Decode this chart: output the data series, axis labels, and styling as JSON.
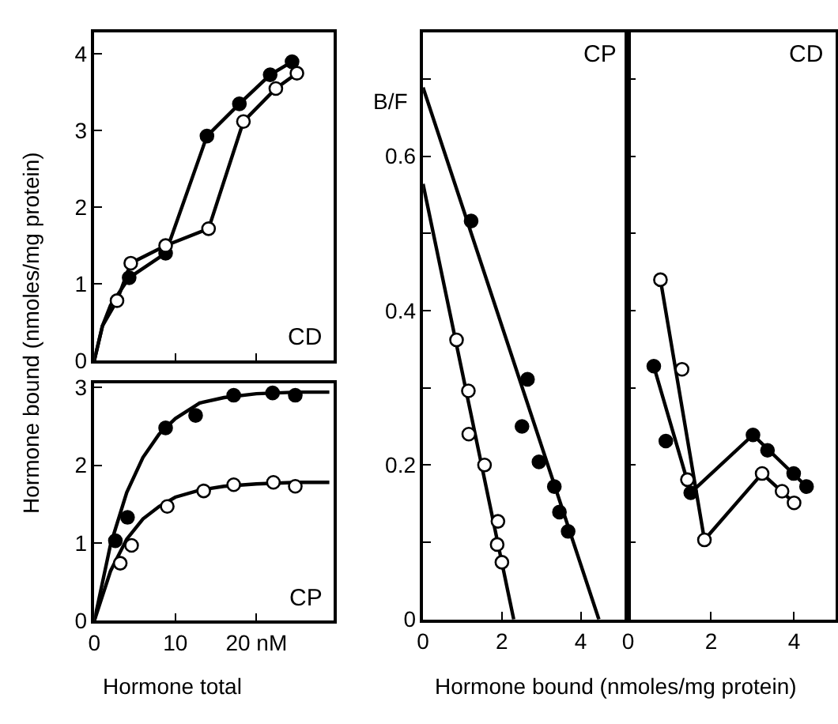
{
  "chart_data": [
    {
      "type": "scatter",
      "title": "CD",
      "ylabel": "Hormone bound (nmoles/mg protein)",
      "xlim": [
        0,
        29.5
      ],
      "ylim": [
        0,
        4.28
      ],
      "xticks": [
        0,
        10,
        20
      ],
      "yticks": [
        0,
        1,
        2,
        3,
        4
      ],
      "tick_labels": "y",
      "marker": "circle",
      "series": [
        {
          "type": "line",
          "marker": "none",
          "color": "#000000",
          "x": [
            0,
            1,
            2,
            4.3,
            8.8,
            13.9,
            17.9,
            21.7,
            24.4
          ],
          "values": [
            0,
            0.45,
            0.72,
            1.08,
            1.4,
            2.93,
            3.35,
            3.73,
            3.9
          ]
        },
        {
          "type": "line",
          "marker": "none",
          "color": "#000000",
          "x": [
            0,
            1,
            2.8,
            4.5,
            8.8,
            14.1,
            18.4,
            22.4,
            25
          ],
          "values": [
            0,
            0.45,
            0.78,
            1.27,
            1.5,
            1.72,
            3.12,
            3.55,
            3.75
          ]
        },
        {
          "color": "#000000",
          "x": [
            4.3,
            8.8,
            13.9,
            17.9,
            21.7,
            24.4
          ],
          "values": [
            1.08,
            1.4,
            2.93,
            3.35,
            3.73,
            3.9
          ]
        },
        {
          "color": "#ffffff",
          "x": [
            2.8,
            4.5,
            8.8,
            14.1,
            18.4,
            22.4,
            25
          ],
          "values": [
            0.78,
            1.27,
            1.5,
            1.72,
            3.12,
            3.55,
            3.75
          ]
        }
      ]
    },
    {
      "type": "scatter",
      "title": "CP",
      "xlabel": "Hormone total",
      "xlim": [
        0,
        29.5
      ],
      "ylim": [
        0,
        3.05
      ],
      "xticks": [
        0,
        10,
        {
          "value": 20,
          "label": "20 nM"
        }
      ],
      "yticks": [
        0,
        1,
        2,
        3
      ],
      "marker": "circle",
      "series": [
        {
          "type": "line",
          "marker": "none",
          "color": "#000000",
          "x": [
            0,
            2,
            4,
            6,
            8,
            10,
            13,
            16,
            20,
            25,
            29
          ],
          "values": [
            0,
            0.98,
            1.65,
            2.1,
            2.4,
            2.6,
            2.8,
            2.87,
            2.92,
            2.94,
            2.94
          ]
        },
        {
          "type": "line",
          "marker": "none",
          "color": "#000000",
          "x": [
            0,
            2,
            4,
            6,
            8,
            10,
            13,
            16,
            20,
            25,
            29
          ],
          "values": [
            0,
            0.64,
            1.05,
            1.31,
            1.47,
            1.59,
            1.68,
            1.73,
            1.76,
            1.78,
            1.78
          ]
        },
        {
          "color": "#000000",
          "x": [
            2.6,
            4.1,
            8.8,
            12.5,
            17.2,
            22.0,
            24.8
          ],
          "values": [
            1.03,
            1.33,
            2.48,
            2.64,
            2.9,
            2.93,
            2.9
          ]
        },
        {
          "color": "#ffffff",
          "x": [
            3.2,
            4.6,
            9.0,
            13.5,
            17.2,
            22.1,
            24.8
          ],
          "values": [
            0.74,
            0.97,
            1.47,
            1.67,
            1.75,
            1.78,
            1.73
          ]
        }
      ]
    },
    {
      "type": "scatter",
      "title": "CP",
      "ylabel": "B/F",
      "xlabel": "Hormone bound (nmoles/mg protein)",
      "xlim": [
        0,
        5.2
      ],
      "ylim": [
        0,
        0.76
      ],
      "xticks": [
        0,
        2,
        4
      ],
      "yticks": [
        0,
        {
          "value": 0.1,
          "label": null
        },
        0.2,
        {
          "value": 0.3,
          "label": null
        },
        0.4,
        {
          "value": 0.5,
          "label": null
        },
        0.6,
        {
          "value": 0.7,
          "label": null
        }
      ],
      "marker": "circle",
      "series": [
        {
          "type": "line",
          "marker": "none",
          "color": "#000000",
          "x": [
            0,
            4.46
          ],
          "values": [
            0.689,
            0
          ]
        },
        {
          "type": "line",
          "marker": "none",
          "color": "#000000",
          "x": [
            0,
            2.3
          ],
          "values": [
            0.564,
            0
          ]
        },
        {
          "color": "#000000",
          "x": [
            1.22,
            2.65,
            2.51,
            2.94,
            3.33,
            3.46,
            3.68
          ],
          "values": [
            0.516,
            0.311,
            0.25,
            0.204,
            0.172,
            0.139,
            0.114
          ]
        },
        {
          "color": "#ffffff",
          "x": [
            0.85,
            1.15,
            1.16,
            1.56,
            1.9,
            1.88,
            2.0
          ],
          "values": [
            0.362,
            0.296,
            0.24,
            0.2,
            0.127,
            0.097,
            0.074
          ]
        }
      ]
    },
    {
      "type": "scatter",
      "title": "CD",
      "xlim": [
        0,
        5.0
      ],
      "ylim": [
        0,
        0.76
      ],
      "xticks": [
        0,
        2,
        4
      ],
      "yticks": [
        {
          "value": 0.1,
          "label": null
        },
        {
          "value": 0.2,
          "label": null
        },
        {
          "value": 0.3,
          "label": null
        },
        {
          "value": 0.4,
          "label": null
        },
        {
          "value": 0.5,
          "label": null
        },
        {
          "value": 0.6,
          "label": null
        },
        {
          "value": 0.7,
          "label": null
        }
      ],
      "tick_labels": "x",
      "marker": "circle",
      "series": [
        {
          "type": "line",
          "marker": "none",
          "color": "#000000",
          "x": [
            0.62,
            1.51,
            3.01,
            4.3
          ],
          "values": [
            0.328,
            0.164,
            0.239,
            0.172
          ]
        },
        {
          "type": "line",
          "marker": "none",
          "color": "#000000",
          "x": [
            0.78,
            1.84,
            3.23,
            4.0
          ],
          "values": [
            0.44,
            0.103,
            0.189,
            0.151
          ]
        },
        {
          "color": "#000000",
          "x": [
            0.62,
            0.91,
            1.51,
            3.01,
            3.36,
            3.99,
            4.3
          ],
          "values": [
            0.328,
            0.231,
            0.164,
            0.239,
            0.219,
            0.189,
            0.172
          ]
        },
        {
          "color": "#ffffff",
          "x": [
            0.78,
            1.3,
            1.43,
            1.84,
            3.23,
            3.71,
            4.0
          ],
          "values": [
            0.44,
            0.324,
            0.181,
            0.103,
            0.189,
            0.166,
            0.151
          ]
        }
      ]
    }
  ]
}
